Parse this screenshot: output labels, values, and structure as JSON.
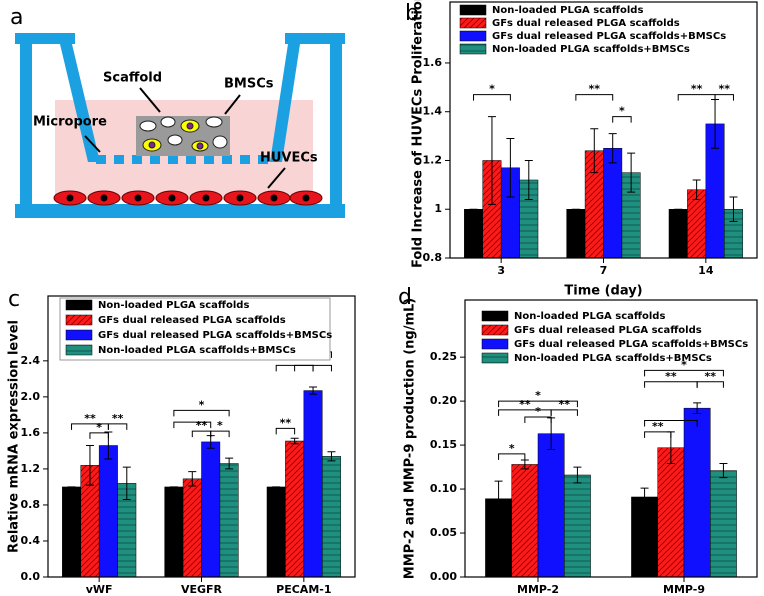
{
  "diagram": {
    "panel_label": "a",
    "labels": [
      "Scaffold",
      "BMSCs",
      "Micropore",
      "HUVECs"
    ]
  },
  "chart_data": [
    {
      "type": "bar",
      "panel_label": "b",
      "y_label": "Fold Increase of HUVECs Proliferation",
      "x_label": "Time (day)",
      "categories": [
        "3",
        "7",
        "14"
      ],
      "series": [
        {
          "name": "Non-loaded PLGA scaffolds",
          "color": "#000000",
          "values": [
            1.0,
            1.0,
            1.0
          ],
          "errors": [
            0,
            0,
            0
          ]
        },
        {
          "name": "GFs dual released PLGA scaffolds",
          "color": "#ff1a1a",
          "values": [
            1.2,
            1.24,
            1.08
          ],
          "errors": [
            0.18,
            0.09,
            0.04
          ]
        },
        {
          "name": "GFs dual released PLGA scaffolds+BMSCs",
          "color": "#1010ff",
          "values": [
            1.17,
            1.25,
            1.35
          ],
          "errors": [
            0.12,
            0.06,
            0.1
          ]
        },
        {
          "name": "Non-loaded PLGA scaffolds+BMSCs",
          "color": "#1f9080",
          "values": [
            1.12,
            1.15,
            1.0
          ],
          "errors": [
            0.08,
            0.08,
            0.05
          ]
        }
      ],
      "ylim": [
        0.8,
        1.85
      ],
      "yticks": [
        0.8,
        1.0,
        1.2,
        1.4,
        1.6
      ],
      "annotations": [
        "*",
        "**",
        "*",
        "**",
        "**"
      ]
    },
    {
      "type": "bar",
      "panel_label": "c",
      "y_label": "Relative mRNA expression level",
      "categories": [
        "vWF",
        "VEGFR",
        "PECAM-1"
      ],
      "series": [
        {
          "name": "Non-loaded PLGA scaffolds",
          "color": "#000000",
          "values": [
            1.0,
            1.0,
            1.0
          ],
          "errors": [
            0,
            0,
            0
          ]
        },
        {
          "name": "GFs dual released PLGA scaffolds",
          "color": "#ff1a1a",
          "values": [
            1.24,
            1.09,
            1.51
          ],
          "errors": [
            0.22,
            0.08,
            0.03
          ]
        },
        {
          "name": "GFs dual released PLGA scaffolds+BMSCs",
          "color": "#1010ff",
          "values": [
            1.46,
            1.5,
            2.07
          ],
          "errors": [
            0.15,
            0.07,
            0.04
          ]
        },
        {
          "name": "Non-loaded PLGA scaffolds+BMSCs",
          "color": "#1f9080",
          "values": [
            1.04,
            1.26,
            1.34
          ],
          "errors": [
            0.18,
            0.06,
            0.05
          ]
        }
      ],
      "ylim": [
        0,
        3.12
      ],
      "yticks": [
        {
          "value": 0,
          "label": "0.0"
        },
        {
          "value": 0.4,
          "label": "0.4"
        },
        {
          "value": 0.8,
          "label": "0.8"
        },
        {
          "value": 1.2,
          "label": "1.2"
        },
        {
          "value": 1.6,
          "label": "1.6"
        },
        {
          "value": 2.0,
          "label": "2.0"
        },
        {
          "value": 2.4,
          "label": "2.4"
        }
      ],
      "annotations": [
        "**",
        "*",
        "**",
        "*",
        "**",
        "*",
        "*",
        "**",
        "**",
        "**"
      ]
    },
    {
      "type": "bar",
      "panel_label": "d",
      "y_label": "MMP-2 and MMP-9 production (ng/mL)",
      "categories": [
        "MMP-2",
        "MMP-9"
      ],
      "series": [
        {
          "name": "Non-loaded PLGA scaffolds",
          "color": "#000000",
          "values": [
            0.089,
            0.091
          ],
          "errors": [
            0.02,
            0.01
          ]
        },
        {
          "name": "GFs dual released PLGA scaffolds",
          "color": "#ff1a1a",
          "values": [
            0.128,
            0.147
          ],
          "errors": [
            0.005,
            0.018
          ]
        },
        {
          "name": "GFs dual released PLGA scaffolds+BMSCs",
          "color": "#1010ff",
          "values": [
            0.163,
            0.192
          ],
          "errors": [
            0.018,
            0.006
          ]
        },
        {
          "name": "Non-loaded PLGA scaffolds+BMSCs",
          "color": "#1f9080",
          "values": [
            0.116,
            0.121
          ],
          "errors": [
            0.009,
            0.008
          ]
        }
      ],
      "ylim": [
        0,
        0.315
      ],
      "yticks": [
        {
          "value": 0,
          "label": "0.00"
        },
        {
          "value": 0.05,
          "label": "0.05"
        },
        {
          "value": 0.1,
          "label": "0.10"
        },
        {
          "value": 0.15,
          "label": "0.15"
        },
        {
          "value": 0.2,
          "label": "0.20"
        },
        {
          "value": 0.25,
          "label": "0.25"
        }
      ],
      "annotations": [
        "*",
        "**",
        "*",
        "**",
        "*",
        "*",
        "**",
        "**",
        "**"
      ]
    }
  ]
}
